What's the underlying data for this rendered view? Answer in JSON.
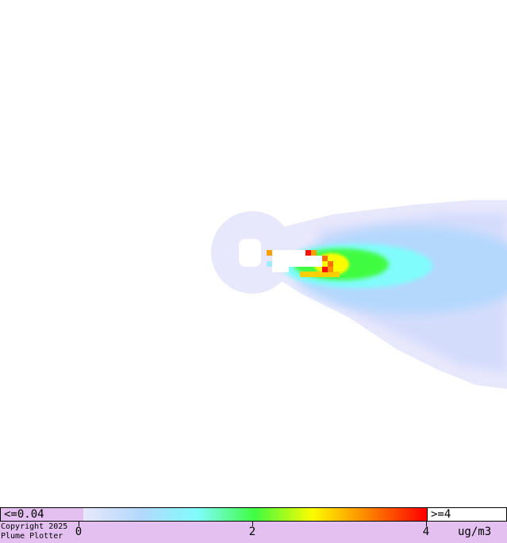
{
  "chart_data": {
    "type": "heatmap",
    "title": "",
    "colorbar": {
      "min_label": "<=0.04",
      "max_label": ">=4",
      "ticks": [
        "0",
        "2",
        "4"
      ],
      "units": "ug/m3",
      "range": [
        0,
        4
      ],
      "colors": [
        "#e8e8fc",
        "#b4d8fc",
        "#80fcfc",
        "#40fc40",
        "#fcfc00",
        "#fc8000",
        "#fc0000"
      ]
    },
    "plume": {
      "direction": "east-southeast",
      "peak_near_source": true
    }
  },
  "footer": {
    "copyright": "Copyright 2025\nPlume Plotter"
  },
  "colors": {
    "legend_background": "#e4c0f0",
    "background_level": "#e8e8fc"
  }
}
